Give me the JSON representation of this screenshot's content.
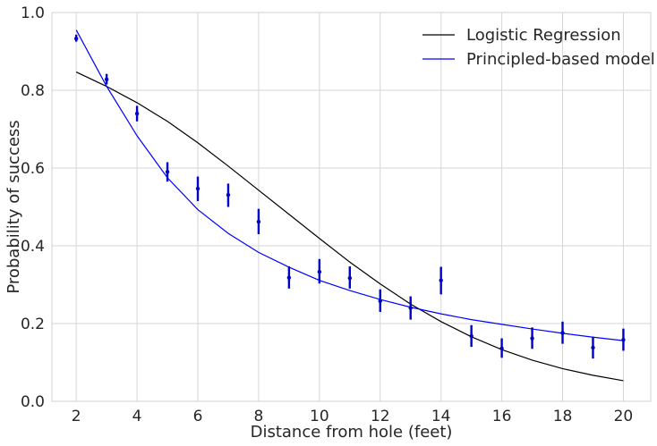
{
  "chart_data": {
    "type": "line",
    "title": "",
    "xlabel": "Distance from hole (feet)",
    "ylabel": "Probability of success",
    "xlim": [
      1.2,
      20.9
    ],
    "ylim": [
      0,
      1.0
    ],
    "xticks": [
      2,
      4,
      6,
      8,
      10,
      12,
      14,
      16,
      18,
      20
    ],
    "yticks": [
      0.0,
      0.2,
      0.4,
      0.6,
      0.8,
      1.0
    ],
    "grid": true,
    "legend_position": "top-right",
    "series": [
      {
        "name": "Logistic Regression",
        "color": "#000000",
        "x": [
          2,
          3,
          4,
          5,
          6,
          7,
          8,
          9,
          10,
          11,
          12,
          13,
          14,
          15,
          16,
          17,
          18,
          19,
          20
        ],
        "y": [
          0.847,
          0.81,
          0.768,
          0.72,
          0.665,
          0.605,
          0.543,
          0.481,
          0.419,
          0.358,
          0.302,
          0.25,
          0.205,
          0.166,
          0.133,
          0.106,
          0.084,
          0.067,
          0.053
        ]
      },
      {
        "name": "Principled-based model",
        "color": "#0000ff",
        "x": [
          2,
          3,
          4,
          5,
          6,
          7,
          8,
          9,
          10,
          11,
          12,
          13,
          14,
          15,
          16,
          17,
          18,
          19,
          20
        ],
        "y": [
          0.955,
          0.81,
          0.683,
          0.575,
          0.493,
          0.432,
          0.383,
          0.345,
          0.311,
          0.285,
          0.262,
          0.242,
          0.225,
          0.21,
          0.198,
          0.186,
          0.175,
          0.165,
          0.156
        ]
      }
    ],
    "observed": {
      "color": "#0000cc",
      "x": [
        2,
        3,
        4,
        5,
        6,
        7,
        8,
        9,
        10,
        11,
        12,
        13,
        14,
        15,
        16,
        17,
        18,
        19,
        20
      ],
      "y": [
        0.933,
        0.828,
        0.74,
        0.59,
        0.547,
        0.531,
        0.462,
        0.318,
        0.333,
        0.317,
        0.258,
        0.24,
        0.311,
        0.168,
        0.136,
        0.162,
        0.176,
        0.138,
        0.158
      ],
      "y_low": [
        0.925,
        0.815,
        0.72,
        0.565,
        0.515,
        0.5,
        0.43,
        0.29,
        0.303,
        0.29,
        0.23,
        0.21,
        0.275,
        0.14,
        0.112,
        0.135,
        0.148,
        0.11,
        0.13
      ],
      "y_high": [
        0.943,
        0.842,
        0.76,
        0.615,
        0.578,
        0.56,
        0.495,
        0.347,
        0.366,
        0.347,
        0.288,
        0.27,
        0.346,
        0.196,
        0.162,
        0.19,
        0.205,
        0.166,
        0.187
      ]
    }
  }
}
